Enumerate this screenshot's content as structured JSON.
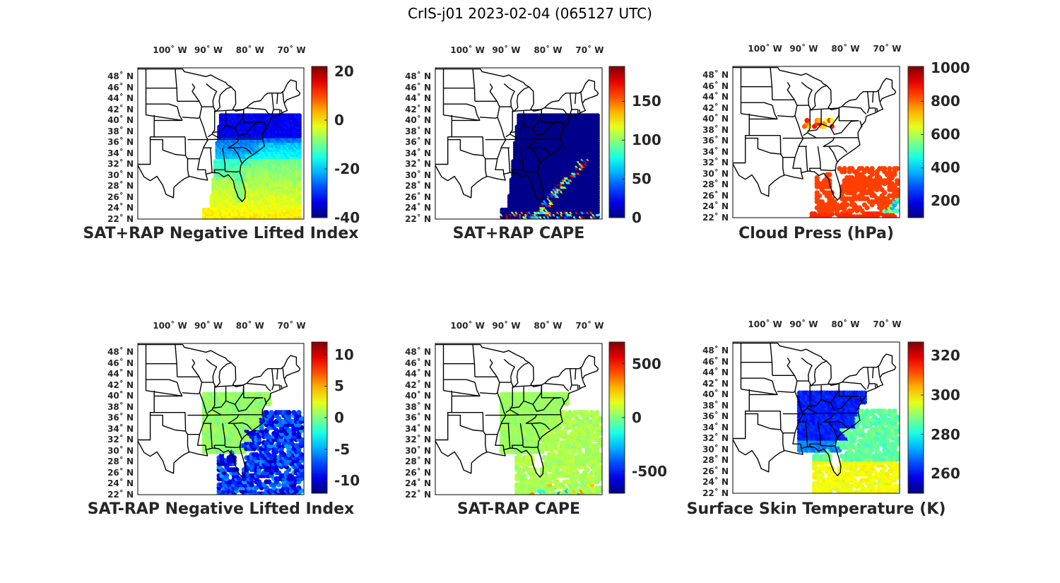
{
  "title": "CrIS-j01 2023-02-04 (065127 UTC)",
  "lon_ticks": [
    "100˚ W",
    "90˚ W",
    "80˚ W",
    "70˚ W"
  ],
  "lat_ticks": [
    "48˚ N",
    "46˚ N",
    "44˚ N",
    "42˚ N",
    "40˚ N",
    "38˚ N",
    "36˚ N",
    "34˚ N",
    "32˚ N",
    "30˚ N",
    "28˚ N",
    "26˚ N",
    "24˚ N",
    "22˚ N"
  ],
  "colormap": "jet",
  "panels": [
    {
      "title": "SAT+RAP Negative Lifted Index",
      "cbar_ticks": [
        "20",
        "0",
        "-20",
        "-40"
      ],
      "cbar_range": [
        -40,
        22
      ],
      "field": "nli_sum"
    },
    {
      "title": "SAT+RAP CAPE",
      "cbar_ticks": [
        "150",
        "100",
        "50",
        "0"
      ],
      "cbar_range": [
        0,
        195
      ],
      "field": "cape_sum"
    },
    {
      "title": "Cloud Press (hPa)",
      "cbar_ticks": [
        "1000",
        "800",
        "600",
        "400",
        "200"
      ],
      "cbar_range": [
        100,
        1010
      ],
      "field": "cloud_press"
    },
    {
      "title": "SAT-RAP Negative Lifted Index",
      "cbar_ticks": [
        "10",
        "5",
        "0",
        "-5",
        "-10"
      ],
      "cbar_range": [
        -12,
        12
      ],
      "field": "nli_diff"
    },
    {
      "title": "SAT-RAP CAPE",
      "cbar_ticks": [
        "500",
        "0",
        "-500"
      ],
      "cbar_range": [
        -700,
        700
      ],
      "field": "cape_diff"
    },
    {
      "title": "Surface Skin Temperature (K)",
      "cbar_ticks": [
        "320",
        "300",
        "280",
        "260"
      ],
      "cbar_range": [
        250,
        327
      ],
      "field": "skin_temp"
    }
  ]
}
